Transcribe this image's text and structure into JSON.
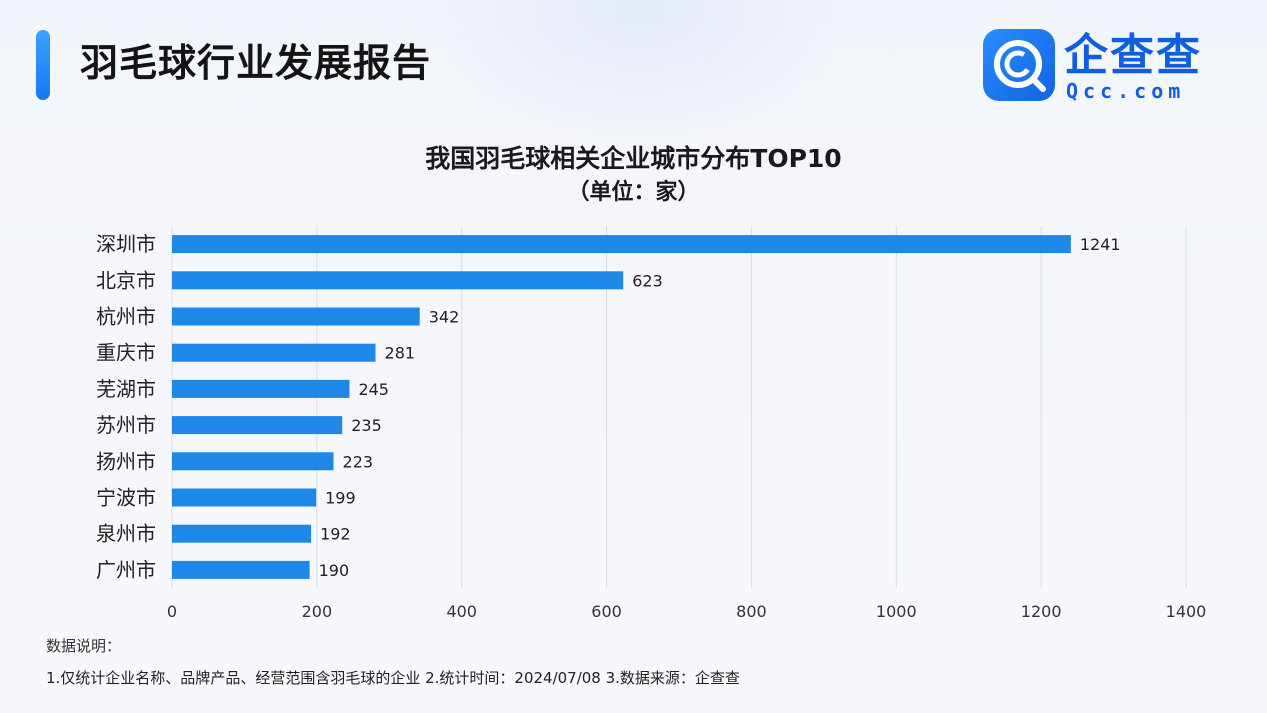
{
  "header": {
    "title": "羽毛球行业发展报告"
  },
  "logo": {
    "name": "企查查",
    "domain": "Qcc.com"
  },
  "chart_data": {
    "type": "bar",
    "orientation": "horizontal",
    "title": "我国羽毛球相关企业城市分布TOP10",
    "subtitle": "（单位：家）",
    "categories": [
      "深圳市",
      "北京市",
      "杭州市",
      "重庆市",
      "芜湖市",
      "苏州市",
      "扬州市",
      "宁波市",
      "泉州市",
      "广州市"
    ],
    "values": [
      1241,
      623,
      342,
      281,
      245,
      235,
      223,
      199,
      192,
      190
    ],
    "xlim": [
      0,
      1400
    ],
    "xticks": [
      0,
      200,
      400,
      600,
      800,
      1000,
      1200,
      1400
    ],
    "grid": true,
    "bar_color": "#1e88e8",
    "xlabel": "",
    "ylabel": ""
  },
  "notes": {
    "label": "数据说明：",
    "text": "1.仅统计企业名称、品牌产品、经营范围含羽毛球的企业   2.统计时间：2024/07/08    3.数据来源：企查查"
  }
}
